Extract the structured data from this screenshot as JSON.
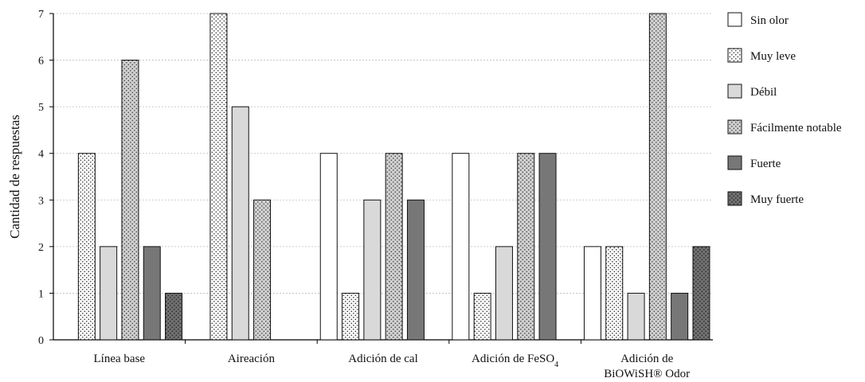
{
  "chart_data": {
    "type": "bar",
    "title": "",
    "xlabel": "",
    "ylabel": "Cantidad de respuestas",
    "ylim": [
      0,
      7
    ],
    "yticks": [
      0,
      1,
      2,
      3,
      4,
      5,
      6,
      7
    ],
    "grid": true,
    "legend_position": "right",
    "categories": [
      [
        "Línea base"
      ],
      [
        "Aireación"
      ],
      [
        "Adición de cal"
      ],
      [
        "Adición de FeSO",
        {
          "sub": "4"
        }
      ],
      [
        "Adición de",
        "BiOWiSH® Odor"
      ]
    ],
    "series": [
      {
        "name": "Sin olor",
        "pattern": "white",
        "values": [
          0,
          0,
          4,
          4,
          2
        ]
      },
      {
        "name": "Muy leve",
        "pattern": "dots-white",
        "values": [
          4,
          7,
          1,
          1,
          2
        ]
      },
      {
        "name": "Débil",
        "pattern": "lightgray",
        "values": [
          2,
          5,
          3,
          2,
          1
        ]
      },
      {
        "name": "Fácilmente notable",
        "pattern": "dots-gray",
        "values": [
          6,
          3,
          4,
          4,
          7
        ]
      },
      {
        "name": "Fuerte",
        "pattern": "darkgray",
        "values": [
          2,
          0,
          3,
          4,
          1
        ]
      },
      {
        "name": "Muy fuerte",
        "pattern": "dots-dark",
        "values": [
          1,
          0,
          0,
          0,
          2
        ]
      }
    ]
  }
}
